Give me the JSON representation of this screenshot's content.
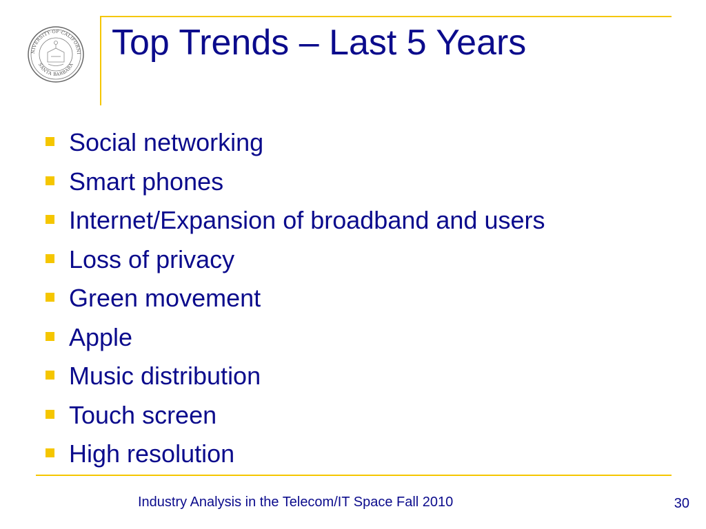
{
  "slide": {
    "title": "Top Trends – Last 5 Years",
    "bullets": [
      "Social networking",
      "Smart phones",
      "Internet/Expansion of broadband and users",
      "Loss of privacy",
      "Green movement",
      "Apple",
      "Music distribution",
      "Touch screen",
      "High resolution"
    ],
    "footer": "Industry Analysis in the Telecom/IT Space Fall 2010",
    "page_number": "30"
  },
  "seal": {
    "icon": "university-seal-icon",
    "text_top": "UNIVERSITY·OF·CALIFORNIA",
    "text_bottom": "SANTA BARBARA"
  },
  "colors": {
    "text": "#0b0b8c",
    "accent": "#f5c600",
    "background": "#ffffff"
  }
}
